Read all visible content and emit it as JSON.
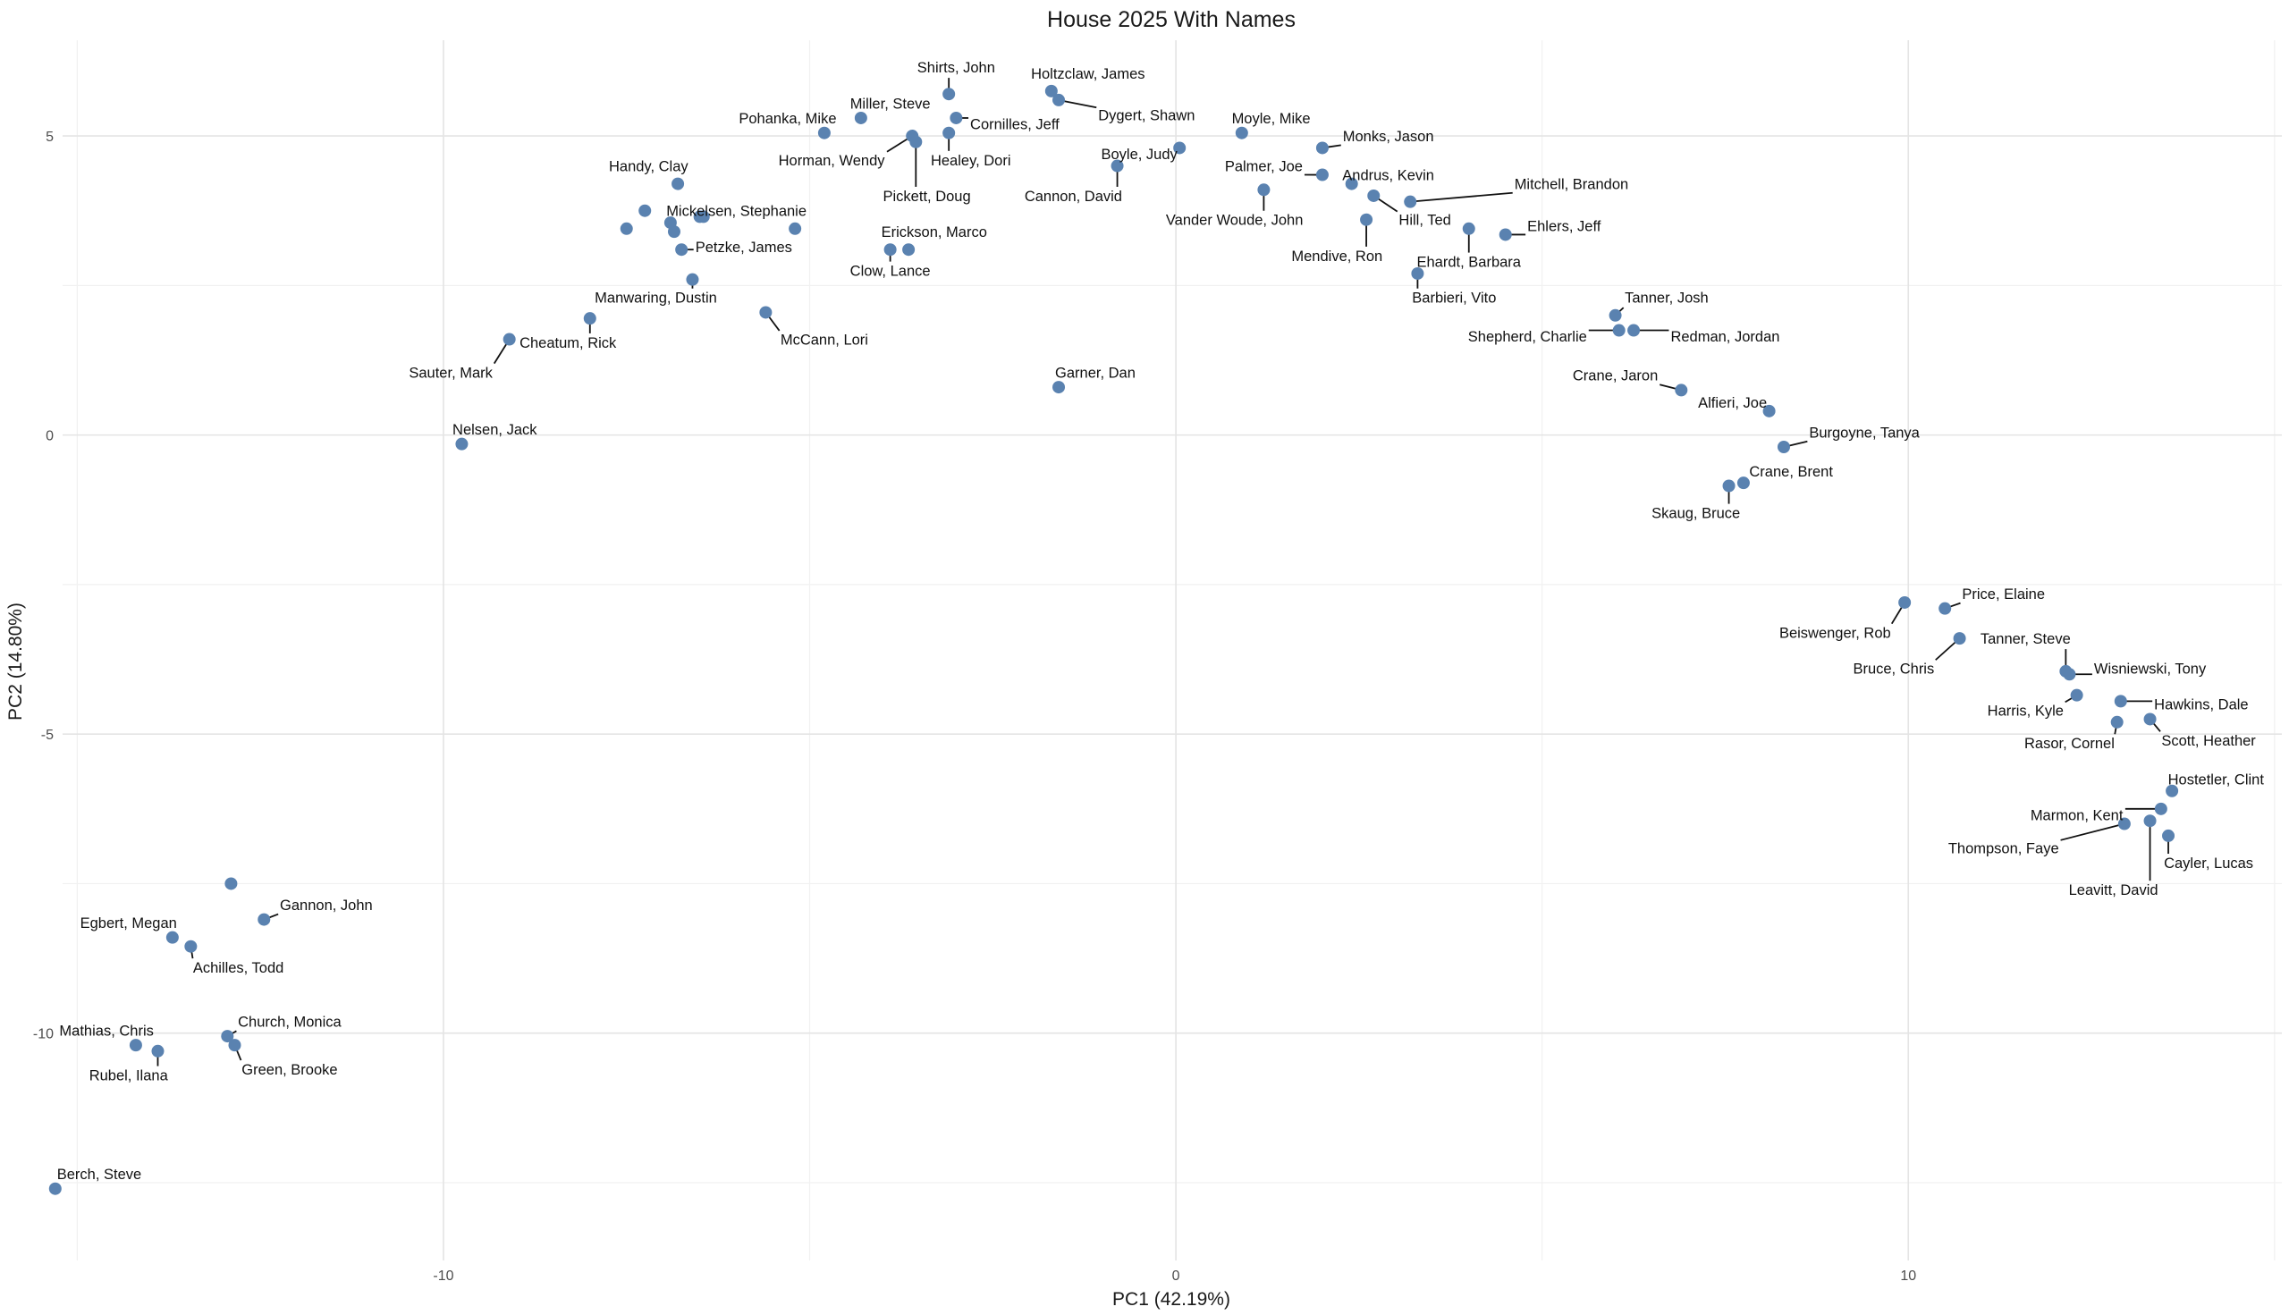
{
  "chart_data": {
    "type": "scatter",
    "title": "House 2025 With Names",
    "xlabel": "PC1 (42.19%)",
    "ylabel": "PC2 (14.80%)",
    "xlim": [
      -15.2,
      15.1
    ],
    "ylim": [
      -13.8,
      6.6
    ],
    "x_ticks": [
      -10,
      0,
      10
    ],
    "y_ticks": [
      -10,
      -5,
      0,
      5
    ],
    "x_tick_labels": [
      "-10",
      "0",
      "10"
    ],
    "y_tick_labels": [
      "-10",
      "-5",
      "0",
      "5"
    ],
    "grid": true,
    "point_color": "#5a82b0",
    "points": [
      {
        "label": "Shirts, John",
        "x": -3.1,
        "y": 5.7,
        "lx": -3.0,
        "ly": 6.15,
        "anchor": "middle"
      },
      {
        "label": "Holtzclaw, James",
        "x": -1.7,
        "y": 5.75,
        "lx": -1.2,
        "ly": 6.05,
        "anchor": "middle"
      },
      {
        "label": "Dygert, Shawn",
        "x": -1.6,
        "y": 5.6,
        "lx": -0.4,
        "ly": 5.35,
        "anchor": "middle"
      },
      {
        "label": "Miller, Steve",
        "x": -4.3,
        "y": 5.3,
        "lx": -3.9,
        "ly": 5.55,
        "anchor": "middle"
      },
      {
        "label": "Cornilles, Jeff",
        "x": -3.0,
        "y": 5.3,
        "lx": -2.2,
        "ly": 5.2,
        "anchor": "middle"
      },
      {
        "label": "Pohanka, Mike",
        "x": -4.8,
        "y": 5.05,
        "lx": -5.3,
        "ly": 5.3,
        "anchor": "middle"
      },
      {
        "label": "Horman, Wendy",
        "x": -3.6,
        "y": 5.0,
        "lx": -4.7,
        "ly": 4.6,
        "anchor": "middle"
      },
      {
        "label": "Pickett, Doug",
        "x": -3.55,
        "y": 4.9,
        "lx": -3.4,
        "ly": 4.0,
        "anchor": "middle"
      },
      {
        "label": "Healey, Dori",
        "x": -3.1,
        "y": 5.05,
        "lx": -2.8,
        "ly": 4.6,
        "anchor": "middle"
      },
      {
        "label": "Boyle, Judy",
        "x": 0.05,
        "y": 4.8,
        "lx": -0.5,
        "ly": 4.7,
        "anchor": "middle"
      },
      {
        "label": "Cannon, David",
        "x": -0.8,
        "y": 4.5,
        "lx": -1.4,
        "ly": 4.0,
        "anchor": "middle"
      },
      {
        "label": "Moyle, Mike",
        "x": 0.9,
        "y": 5.05,
        "lx": 1.3,
        "ly": 5.3,
        "anchor": "middle"
      },
      {
        "label": "Monks, Jason",
        "x": 2.0,
        "y": 4.8,
        "lx": 2.9,
        "ly": 5.0,
        "anchor": "middle"
      },
      {
        "label": "Palmer, Joe",
        "x": 2.0,
        "y": 4.35,
        "lx": 1.2,
        "ly": 4.5,
        "anchor": "middle"
      },
      {
        "label": "Andrus, Kevin",
        "x": 2.4,
        "y": 4.2,
        "lx": 2.9,
        "ly": 4.35,
        "anchor": "middle"
      },
      {
        "label": "Mitchell, Brandon",
        "x": 3.2,
        "y": 3.9,
        "lx": 5.4,
        "ly": 4.2,
        "anchor": "middle"
      },
      {
        "label": "Hill, Ted",
        "x": 2.7,
        "y": 4.0,
        "lx": 3.4,
        "ly": 3.6,
        "anchor": "middle"
      },
      {
        "label": "Vander Woude, John",
        "x": 1.2,
        "y": 4.1,
        "lx": 0.8,
        "ly": 3.6,
        "anchor": "middle"
      },
      {
        "label": "Mendive, Ron",
        "x": 2.6,
        "y": 3.6,
        "lx": 2.2,
        "ly": 3.0,
        "anchor": "middle"
      },
      {
        "label": "Ehardt, Barbara",
        "x": 4.0,
        "y": 3.45,
        "lx": 4.0,
        "ly": 2.9,
        "anchor": "middle"
      },
      {
        "label": "Ehlers, Jeff",
        "x": 4.5,
        "y": 3.35,
        "lx": 5.3,
        "ly": 3.5,
        "anchor": "middle"
      },
      {
        "label": "Barbieri, Vito",
        "x": 3.3,
        "y": 2.7,
        "lx": 3.8,
        "ly": 2.3,
        "anchor": "middle"
      },
      {
        "label": "Handy, Clay",
        "x": -6.8,
        "y": 4.2,
        "lx": -7.2,
        "ly": 4.5,
        "anchor": "middle"
      },
      {
        "label": "Mickelsen, Stephanie",
        "x": -5.2,
        "y": 3.45,
        "lx": -6.0,
        "ly": 3.75,
        "anchor": "middle"
      },
      {
        "label": "Petzke, James",
        "x": -6.75,
        "y": 3.1,
        "lx": -5.9,
        "ly": 3.15,
        "anchor": "middle"
      },
      {
        "label": "Erickson, Marco",
        "x": -3.65,
        "y": 3.1,
        "lx": -3.3,
        "ly": 3.4,
        "anchor": "middle"
      },
      {
        "label": "Clow, Lance",
        "x": -3.9,
        "y": 3.1,
        "lx": -3.9,
        "ly": 2.75,
        "anchor": "middle"
      },
      {
        "label": "Manwaring, Dustin",
        "x": -6.6,
        "y": 2.6,
        "lx": -7.1,
        "ly": 2.3,
        "anchor": "middle"
      },
      {
        "label": "McCann, Lori",
        "x": -5.6,
        "y": 2.05,
        "lx": -4.8,
        "ly": 1.6,
        "anchor": "middle"
      },
      {
        "label": "Cheatum, Rick",
        "x": -8.0,
        "y": 1.95,
        "lx": -8.3,
        "ly": 1.55,
        "anchor": "middle"
      },
      {
        "label": "Sauter, Mark",
        "x": -9.1,
        "y": 1.6,
        "lx": -9.9,
        "ly": 1.05,
        "anchor": "middle"
      },
      {
        "label": "Garner, Dan",
        "x": -1.6,
        "y": 0.8,
        "lx": -1.1,
        "ly": 1.05,
        "anchor": "middle"
      },
      {
        "label": "Nelsen, Jack",
        "x": -9.75,
        "y": -0.15,
        "lx": -9.3,
        "ly": 0.1,
        "anchor": "middle"
      },
      {
        "label": "Tanner, Josh",
        "x": 6.0,
        "y": 2.0,
        "lx": 6.7,
        "ly": 2.3,
        "anchor": "middle"
      },
      {
        "label": "Shepherd, Charlie",
        "x": 6.05,
        "y": 1.75,
        "lx": 4.8,
        "ly": 1.65,
        "anchor": "middle"
      },
      {
        "label": "Redman, Jordan",
        "x": 6.25,
        "y": 1.75,
        "lx": 7.5,
        "ly": 1.65,
        "anchor": "middle"
      },
      {
        "label": "Crane, Jaron",
        "x": 6.9,
        "y": 0.75,
        "lx": 6.0,
        "ly": 1.0,
        "anchor": "middle"
      },
      {
        "label": "Alfieri, Joe",
        "x": 8.1,
        "y": 0.4,
        "lx": 7.6,
        "ly": 0.55,
        "anchor": "middle"
      },
      {
        "label": "Burgoyne, Tanya",
        "x": 8.3,
        "y": -0.2,
        "lx": 9.4,
        "ly": 0.05,
        "anchor": "middle"
      },
      {
        "label": "Crane, Brent",
        "x": 7.75,
        "y": -0.8,
        "lx": 8.4,
        "ly": -0.6,
        "anchor": "middle"
      },
      {
        "label": "Skaug, Bruce",
        "x": 7.55,
        "y": -0.85,
        "lx": 7.1,
        "ly": -1.3,
        "anchor": "middle"
      },
      {
        "label": "Beiswenger, Rob",
        "x": 9.95,
        "y": -2.8,
        "lx": 9.0,
        "ly": -3.3,
        "anchor": "middle"
      },
      {
        "label": "Price, Elaine",
        "x": 10.5,
        "y": -2.9,
        "lx": 11.3,
        "ly": -2.65,
        "anchor": "middle"
      },
      {
        "label": "Bruce, Chris",
        "x": 10.7,
        "y": -3.4,
        "lx": 9.8,
        "ly": -3.9,
        "anchor": "middle"
      },
      {
        "label": "Tanner, Steve",
        "x": 12.15,
        "y": -3.95,
        "lx": 11.6,
        "ly": -3.4,
        "anchor": "middle"
      },
      {
        "label": "Wisniewski, Tony",
        "x": 12.2,
        "y": -4.0,
        "lx": 13.3,
        "ly": -3.9,
        "anchor": "middle"
      },
      {
        "label": "Harris, Kyle",
        "x": 12.3,
        "y": -4.35,
        "lx": 11.6,
        "ly": -4.6,
        "anchor": "middle"
      },
      {
        "label": "Hawkins, Dale",
        "x": 12.9,
        "y": -4.45,
        "lx": 14.0,
        "ly": -4.5,
        "anchor": "middle"
      },
      {
        "label": "Rasor, Cornel",
        "x": 12.85,
        "y": -4.8,
        "lx": 12.2,
        "ly": -5.15,
        "anchor": "middle"
      },
      {
        "label": "Scott, Heather",
        "x": 13.3,
        "y": -4.75,
        "lx": 14.1,
        "ly": -5.1,
        "anchor": "middle"
      },
      {
        "label": "Hostetler, Clint",
        "x": 13.6,
        "y": -5.95,
        "lx": 14.2,
        "ly": -5.75,
        "anchor": "middle"
      },
      {
        "label": "Marmon, Kent",
        "x": 13.45,
        "y": -6.25,
        "lx": 12.3,
        "ly": -6.35,
        "anchor": "middle"
      },
      {
        "label": "Thompson, Faye",
        "x": 12.95,
        "y": -6.5,
        "lx": 11.3,
        "ly": -6.9,
        "anchor": "middle"
      },
      {
        "label": "Leavitt, David",
        "x": 13.3,
        "y": -6.45,
        "lx": 12.8,
        "ly": -7.6,
        "anchor": "middle"
      },
      {
        "label": "Cayler, Lucas",
        "x": 13.55,
        "y": -6.7,
        "lx": 14.1,
        "ly": -7.15,
        "anchor": "middle"
      },
      {
        "label": "Gannon, John",
        "x": -12.45,
        "y": -8.1,
        "lx": -11.6,
        "ly": -7.85,
        "anchor": "middle"
      },
      {
        "label": "Egbert, Megan",
        "x": -13.7,
        "y": -8.4,
        "lx": -14.3,
        "ly": -8.15,
        "anchor": "middle"
      },
      {
        "label": "Achilles, Todd",
        "x": -13.45,
        "y": -8.55,
        "lx": -12.8,
        "ly": -8.9,
        "anchor": "middle"
      },
      {
        "label": "Mathias, Chris",
        "x": -14.2,
        "y": -10.2,
        "lx": -14.6,
        "ly": -9.95,
        "anchor": "middle"
      },
      {
        "label": "Rubel, Ilana",
        "x": -13.9,
        "y": -10.3,
        "lx": -14.3,
        "ly": -10.7,
        "anchor": "middle"
      },
      {
        "label": "Church, Monica",
        "x": -12.95,
        "y": -10.05,
        "lx": -12.1,
        "ly": -9.8,
        "anchor": "middle"
      },
      {
        "label": "Green, Brooke",
        "x": -12.85,
        "y": -10.2,
        "lx": -12.1,
        "ly": -10.6,
        "anchor": "middle"
      },
      {
        "label": "Berch, Steve",
        "x": -15.3,
        "y": -12.6,
        "lx": -14.7,
        "ly": -12.35,
        "anchor": "middle"
      },
      {
        "label": "",
        "x": -12.9,
        "y": -7.5
      },
      {
        "label": "",
        "x": -7.25,
        "y": 3.75
      },
      {
        "label": "",
        "x": -7.5,
        "y": 3.45
      },
      {
        "label": "",
        "x": -6.9,
        "y": 3.55
      },
      {
        "label": "",
        "x": -6.85,
        "y": 3.4
      },
      {
        "label": "",
        "x": -6.5,
        "y": 3.65
      },
      {
        "label": "",
        "x": -6.45,
        "y": 3.65
      }
    ]
  }
}
